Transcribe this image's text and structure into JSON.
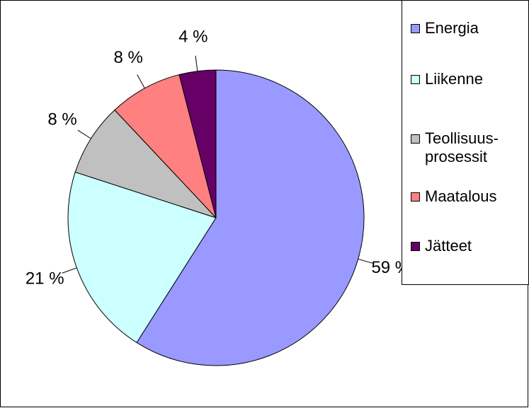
{
  "chart_data": {
    "type": "pie",
    "categories": [
      "Energia",
      "Liikenne",
      "Teollisuus-prosessit",
      "Maatalous",
      "Jätteet"
    ],
    "values": [
      59,
      21,
      8,
      8,
      4
    ],
    "value_labels": [
      "59 %",
      "21 %",
      "8 %",
      "8 %",
      "4 %"
    ],
    "colors": [
      "#9999ff",
      "#ccffff",
      "#c0c0c0",
      "#ff8080",
      "#660066"
    ],
    "legend": "right"
  }
}
